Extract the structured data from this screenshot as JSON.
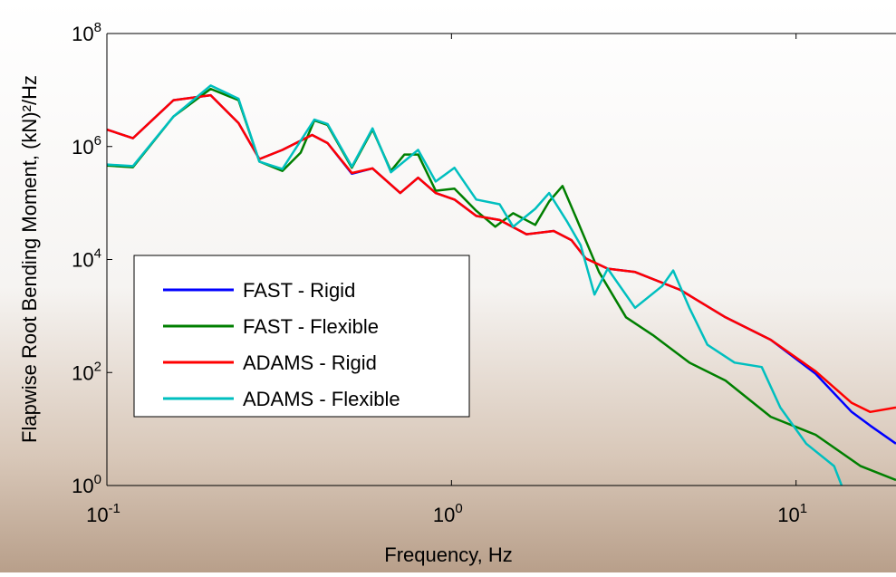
{
  "chart_data": {
    "type": "line",
    "log_x": true,
    "log_y": true,
    "xlabel": "Frequency, Hz",
    "ylabel": "Flapwise Root Bending Moment, (kN)²/Hz",
    "xlim": [
      0.1,
      19.5
    ],
    "ylim": [
      1,
      100000000
    ],
    "xticks": [
      {
        "value": 0.1,
        "label": "10",
        "exponent": "-1"
      },
      {
        "value": 1,
        "label": "10",
        "exponent": "0"
      },
      {
        "value": 10,
        "label": "10",
        "exponent": "1"
      }
    ],
    "yticks": [
      {
        "value": 1,
        "label": "10",
        "exponent": "0"
      },
      {
        "value": 100,
        "label": "10",
        "exponent": "2"
      },
      {
        "value": 10000,
        "label": "10",
        "exponent": "4"
      },
      {
        "value": 1000000,
        "label": "10",
        "exponent": "6"
      },
      {
        "value": 100000000,
        "label": "10",
        "exponent": "8"
      }
    ],
    "legend": "lower-left",
    "series": [
      {
        "name": "FAST - Rigid",
        "color": "#0000ff",
        "x": [
          0.1,
          0.119,
          0.156,
          0.2,
          0.241,
          0.277,
          0.323,
          0.394,
          0.437,
          0.514,
          0.59,
          0.71,
          0.8,
          0.9,
          1.02,
          1.18,
          1.38,
          1.65,
          1.98,
          2.23,
          2.45,
          2.84,
          3.41,
          4.61,
          6.24,
          8.44,
          11.4,
          14.5,
          16.4,
          19.5
        ],
        "values": [
          2000000,
          1400000,
          6600000,
          8100000,
          2600000,
          600000,
          870000,
          1600000,
          1150000,
          330000,
          410000,
          150000,
          280000,
          150000,
          115000,
          59000,
          50000,
          28000,
          32000,
          22000,
          10500,
          6900,
          6000,
          2900,
          950,
          380,
          95,
          20,
          11.5,
          5.5
        ]
      },
      {
        "name": "FAST - Flexible",
        "color": "#007f00",
        "x": [
          0.1,
          0.119,
          0.156,
          0.2,
          0.241,
          0.277,
          0.323,
          0.365,
          0.4,
          0.437,
          0.514,
          0.59,
          0.667,
          0.73,
          0.8,
          0.9,
          1.02,
          1.18,
          1.34,
          1.51,
          1.75,
          1.92,
          2.1,
          2.3,
          2.68,
          3.21,
          3.84,
          4.9,
          6.24,
          8.44,
          11.4,
          15.4,
          19.5
        ],
        "values": [
          460000,
          430000,
          3400000,
          10500000,
          6600000,
          540000,
          370000,
          780000,
          2900000,
          2400000,
          420000,
          2000000,
          370000,
          720000,
          720000,
          165000,
          180000,
          73000,
          38000,
          66000,
          41000,
          106000,
          200000,
          55000,
          6000,
          950,
          460,
          150,
          72,
          16.5,
          7.9,
          2.2,
          1.25
        ]
      },
      {
        "name": "ADAMS - Rigid",
        "color": "#ff0000",
        "x": [
          0.1,
          0.119,
          0.156,
          0.2,
          0.241,
          0.277,
          0.323,
          0.394,
          0.437,
          0.514,
          0.59,
          0.71,
          0.8,
          0.9,
          1.02,
          1.18,
          1.38,
          1.65,
          1.98,
          2.23,
          2.45,
          2.84,
          3.41,
          4.61,
          6.24,
          8.44,
          11.4,
          14.5,
          16.4,
          19.5
        ],
        "values": [
          2000000,
          1400000,
          6600000,
          8100000,
          2600000,
          600000,
          870000,
          1600000,
          1150000,
          340000,
          410000,
          150000,
          280000,
          150000,
          115000,
          59000,
          50000,
          28000,
          32000,
          22000,
          10500,
          6900,
          6000,
          2900,
          950,
          380,
          105,
          29,
          20,
          24
        ]
      },
      {
        "name": "ADAMS - Flexible",
        "color": "#00bfbf",
        "x": [
          0.1,
          0.119,
          0.156,
          0.2,
          0.241,
          0.277,
          0.323,
          0.4,
          0.437,
          0.514,
          0.59,
          0.667,
          0.8,
          0.9,
          1.02,
          1.18,
          1.38,
          1.51,
          1.75,
          1.92,
          2.17,
          2.37,
          2.6,
          2.84,
          3.41,
          4.09,
          4.4,
          4.9,
          5.53,
          6.63,
          7.95,
          9.0,
          10.7,
          12.9,
          13.7
        ],
        "values": [
          480000,
          450000,
          3400000,
          12000000,
          7000000,
          540000,
          400000,
          3000000,
          2500000,
          440000,
          2100000,
          350000,
          870000,
          240000,
          420000,
          115000,
          95000,
          38000,
          79000,
          150000,
          46000,
          18000,
          2400,
          6900,
          1400,
          3400,
          6400,
          1400,
          310,
          150,
          125,
          24,
          5.5,
          2.2,
          0.85
        ]
      }
    ]
  }
}
